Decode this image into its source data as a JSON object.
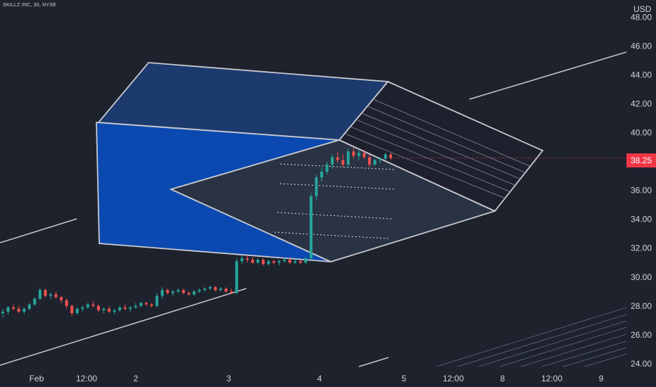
{
  "header": {
    "symbol_line": "SKILLZ INC, 30, NYSE",
    "currency": "USD"
  },
  "price_badge": {
    "value": "38.25",
    "color": "#f23645"
  },
  "colors": {
    "background": "#1e222d",
    "up": "#26a69a",
    "down": "#ef5350",
    "drawing_line": "#c7c9cf",
    "front_face": "#0b49b0",
    "top_face": "#1d3a6e",
    "inner_face": "#2a3545"
  },
  "chart_data": {
    "type": "candlestick",
    "y_axis": {
      "label": "USD",
      "range": [
        23.6,
        49.2
      ],
      "ticks": [
        "24.00",
        "26.00",
        "28.00",
        "30.00",
        "32.00",
        "34.00",
        "36.00",
        "38.00",
        "40.00",
        "42.00",
        "44.00",
        "46.00",
        "48.00"
      ]
    },
    "x_axis": {
      "labels": [
        "Feb",
        "12:00",
        "2",
        "3",
        "4",
        "5",
        "12:00",
        "8",
        "12:00",
        "9"
      ]
    },
    "last_price": 38.25,
    "series": [
      {
        "candles": [
          [
            27.5,
            27.8,
            27.2,
            27.6
          ],
          [
            27.6,
            28.0,
            27.4,
            27.9
          ],
          [
            27.9,
            28.1,
            27.7,
            27.8
          ],
          [
            27.8,
            28.0,
            27.5,
            27.6
          ],
          [
            27.6,
            27.9,
            27.4,
            27.8
          ],
          [
            27.8,
            28.2,
            27.7,
            28.1
          ],
          [
            28.1,
            28.6,
            28.0,
            28.5
          ],
          [
            28.5,
            29.3,
            28.4,
            29.1
          ],
          [
            29.1,
            29.2,
            28.6,
            28.7
          ],
          [
            28.7,
            28.9,
            28.5,
            28.8
          ],
          [
            28.8,
            29.0,
            28.5,
            28.6
          ],
          [
            28.6,
            28.7,
            28.2,
            28.4
          ],
          [
            28.4,
            28.5,
            27.8,
            28.0
          ],
          [
            28.0,
            28.1,
            27.3,
            27.5
          ],
          [
            27.5,
            27.9,
            27.4,
            27.8
          ],
          [
            27.8,
            28.0,
            27.6,
            27.9
          ],
          [
            27.9,
            28.2,
            27.8,
            28.1
          ],
          [
            28.1,
            28.3,
            27.9,
            28.0
          ],
          [
            28.0,
            28.1,
            27.6,
            27.7
          ],
          [
            27.7,
            27.9,
            27.5,
            27.8
          ],
          [
            27.8,
            28.0,
            27.5,
            27.6
          ],
          [
            27.6,
            27.8,
            27.4,
            27.7
          ],
          [
            27.7,
            28.0,
            27.6,
            27.9
          ],
          [
            27.9,
            28.1,
            27.7,
            27.8
          ],
          [
            27.8,
            28.0,
            27.6,
            27.9
          ],
          [
            27.9,
            28.2,
            27.8,
            28.0
          ],
          [
            28.0,
            28.3,
            27.9,
            28.2
          ],
          [
            28.2,
            28.3,
            28.0,
            28.1
          ],
          [
            28.1,
            28.2,
            27.9,
            28.0
          ],
          [
            28.0,
            28.9,
            27.9,
            28.7
          ],
          [
            28.7,
            29.3,
            28.5,
            29.1
          ],
          [
            29.1,
            29.2,
            28.8,
            28.9
          ],
          [
            28.9,
            29.1,
            28.7,
            29.0
          ],
          [
            29.0,
            29.2,
            28.9,
            29.1
          ],
          [
            29.1,
            29.2,
            28.8,
            28.9
          ],
          [
            28.9,
            29.0,
            28.7,
            28.8
          ],
          [
            28.8,
            29.1,
            28.7,
            29.0
          ],
          [
            29.0,
            29.2,
            28.9,
            29.1
          ],
          [
            29.1,
            29.3,
            29.0,
            29.2
          ],
          [
            29.2,
            29.4,
            29.1,
            29.3
          ],
          [
            29.3,
            29.4,
            29.0,
            29.1
          ],
          [
            29.1,
            29.3,
            29.0,
            29.2
          ],
          [
            29.2,
            29.3,
            28.9,
            29.0
          ],
          [
            29.0,
            29.2,
            28.8,
            28.9
          ],
          [
            28.9,
            31.3,
            28.8,
            31.1
          ],
          [
            31.1,
            31.5,
            30.9,
            31.3
          ],
          [
            31.3,
            31.5,
            31.0,
            31.2
          ],
          [
            31.2,
            31.4,
            30.9,
            31.0
          ],
          [
            31.0,
            31.3,
            30.9,
            31.2
          ],
          [
            31.2,
            31.3,
            30.8,
            30.9
          ],
          [
            30.9,
            31.2,
            30.8,
            31.1
          ],
          [
            31.1,
            31.2,
            30.9,
            31.0
          ],
          [
            31.0,
            31.2,
            30.8,
            31.1
          ],
          [
            31.1,
            31.3,
            31.0,
            31.2
          ],
          [
            31.2,
            31.3,
            30.9,
            31.0
          ],
          [
            31.0,
            31.2,
            30.9,
            31.1
          ],
          [
            31.1,
            31.2,
            30.9,
            31.0
          ],
          [
            31.0,
            31.4,
            30.9,
            31.3
          ],
          [
            31.3,
            35.8,
            31.2,
            35.6
          ],
          [
            35.6,
            37.1,
            35.3,
            36.9
          ],
          [
            36.9,
            37.6,
            36.6,
            37.3
          ],
          [
            37.3,
            38.0,
            37.1,
            37.8
          ],
          [
            37.8,
            38.5,
            37.5,
            38.3
          ],
          [
            38.3,
            38.7,
            37.9,
            38.1
          ],
          [
            38.1,
            38.5,
            37.6,
            37.8
          ],
          [
            37.8,
            38.9,
            37.6,
            38.7
          ],
          [
            38.7,
            39.0,
            38.2,
            38.4
          ],
          [
            38.4,
            38.8,
            38.1,
            38.6
          ],
          [
            38.6,
            38.8,
            38.2,
            38.3
          ],
          [
            38.3,
            38.5,
            37.6,
            37.8
          ],
          [
            37.8,
            38.2,
            37.7,
            38.1
          ],
          [
            38.1,
            38.3,
            37.9,
            38.2
          ],
          [
            38.2,
            38.6,
            38.1,
            38.5
          ],
          [
            38.5,
            38.6,
            38.1,
            38.25
          ]
        ]
      }
    ]
  }
}
